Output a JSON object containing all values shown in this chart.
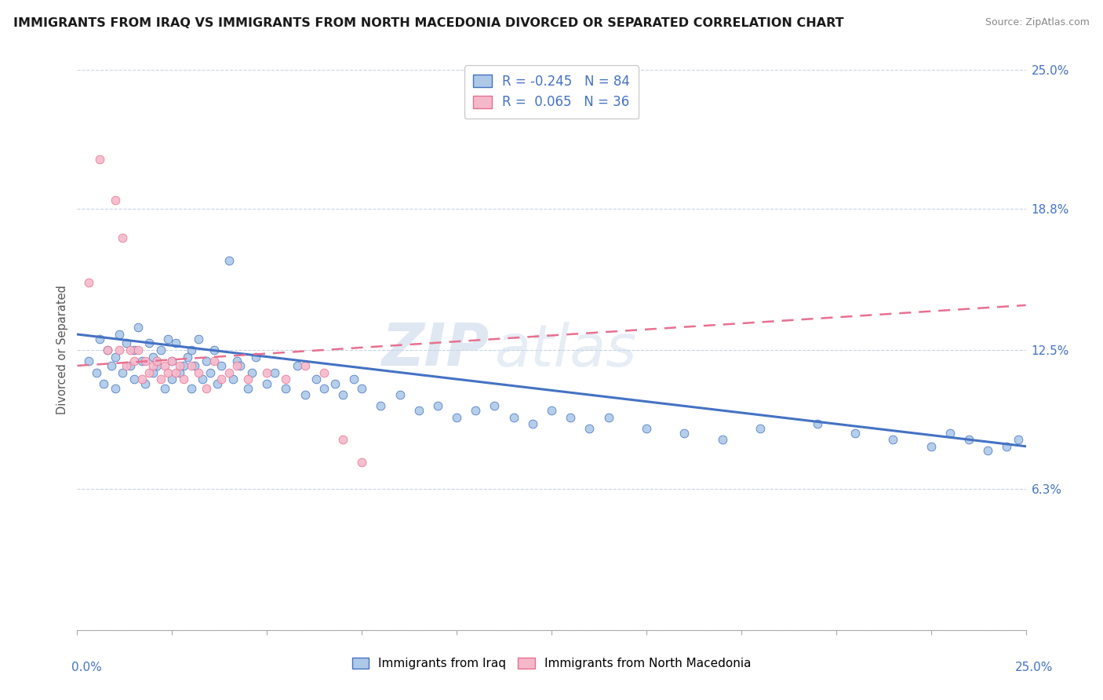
{
  "title": "IMMIGRANTS FROM IRAQ VS IMMIGRANTS FROM NORTH MACEDONIA DIVORCED OR SEPARATED CORRELATION CHART",
  "source": "Source: ZipAtlas.com",
  "ylabel": "Divorced or Separated",
  "xlim": [
    0.0,
    0.25
  ],
  "ylim": [
    0.0,
    0.25
  ],
  "legend_iraq_r": "-0.245",
  "legend_iraq_n": "84",
  "legend_macedonia_r": "0.065",
  "legend_macedonia_n": "36",
  "iraq_color": "#adc9e8",
  "macedonia_color": "#f5b8cb",
  "iraq_line_color": "#4472c4",
  "macedonia_line_color": "#e87090",
  "watermark": "ZIPAtlas",
  "iraq_x": [
    0.003,
    0.005,
    0.006,
    0.007,
    0.008,
    0.009,
    0.01,
    0.01,
    0.011,
    0.012,
    0.013,
    0.014,
    0.015,
    0.015,
    0.016,
    0.017,
    0.018,
    0.019,
    0.02,
    0.02,
    0.021,
    0.022,
    0.023,
    0.024,
    0.025,
    0.025,
    0.026,
    0.027,
    0.028,
    0.029,
    0.03,
    0.03,
    0.031,
    0.032,
    0.033,
    0.034,
    0.035,
    0.036,
    0.037,
    0.038,
    0.04,
    0.041,
    0.042,
    0.043,
    0.045,
    0.046,
    0.047,
    0.05,
    0.052,
    0.055,
    0.058,
    0.06,
    0.063,
    0.065,
    0.068,
    0.07,
    0.073,
    0.075,
    0.08,
    0.085,
    0.09,
    0.095,
    0.1,
    0.105,
    0.11,
    0.115,
    0.12,
    0.125,
    0.13,
    0.135,
    0.14,
    0.15,
    0.16,
    0.17,
    0.18,
    0.195,
    0.205,
    0.215,
    0.225,
    0.23,
    0.235,
    0.24,
    0.245,
    0.248
  ],
  "iraq_y": [
    0.12,
    0.115,
    0.13,
    0.11,
    0.125,
    0.118,
    0.122,
    0.108,
    0.132,
    0.115,
    0.128,
    0.118,
    0.125,
    0.112,
    0.135,
    0.12,
    0.11,
    0.128,
    0.122,
    0.115,
    0.118,
    0.125,
    0.108,
    0.13,
    0.12,
    0.112,
    0.128,
    0.115,
    0.118,
    0.122,
    0.125,
    0.108,
    0.118,
    0.13,
    0.112,
    0.12,
    0.115,
    0.125,
    0.11,
    0.118,
    0.165,
    0.112,
    0.12,
    0.118,
    0.108,
    0.115,
    0.122,
    0.11,
    0.115,
    0.108,
    0.118,
    0.105,
    0.112,
    0.108,
    0.11,
    0.105,
    0.112,
    0.108,
    0.1,
    0.105,
    0.098,
    0.1,
    0.095,
    0.098,
    0.1,
    0.095,
    0.092,
    0.098,
    0.095,
    0.09,
    0.095,
    0.09,
    0.088,
    0.085,
    0.09,
    0.092,
    0.088,
    0.085,
    0.082,
    0.088,
    0.085,
    0.08,
    0.082,
    0.085
  ],
  "mac_x": [
    0.003,
    0.006,
    0.008,
    0.01,
    0.011,
    0.012,
    0.013,
    0.014,
    0.015,
    0.016,
    0.017,
    0.018,
    0.019,
    0.02,
    0.021,
    0.022,
    0.023,
    0.024,
    0.025,
    0.026,
    0.027,
    0.028,
    0.03,
    0.032,
    0.034,
    0.036,
    0.038,
    0.04,
    0.042,
    0.045,
    0.05,
    0.055,
    0.06,
    0.065,
    0.07,
    0.075
  ],
  "mac_y": [
    0.155,
    0.21,
    0.125,
    0.192,
    0.125,
    0.175,
    0.118,
    0.125,
    0.12,
    0.125,
    0.112,
    0.12,
    0.115,
    0.118,
    0.12,
    0.112,
    0.118,
    0.115,
    0.12,
    0.115,
    0.118,
    0.112,
    0.118,
    0.115,
    0.108,
    0.12,
    0.112,
    0.115,
    0.118,
    0.112,
    0.115,
    0.112,
    0.118,
    0.115,
    0.085,
    0.075
  ],
  "iraq_trend_x": [
    0.0,
    0.25
  ],
  "iraq_trend_y": [
    0.132,
    0.082
  ],
  "mac_trend_x": [
    0.0,
    0.25
  ],
  "mac_trend_y": [
    0.118,
    0.145
  ],
  "ytick_vals": [
    0.0,
    0.063,
    0.125,
    0.188,
    0.25
  ],
  "ytick_labels": [
    "",
    "6.3%",
    "12.5%",
    "18.8%",
    "25.0%"
  ]
}
